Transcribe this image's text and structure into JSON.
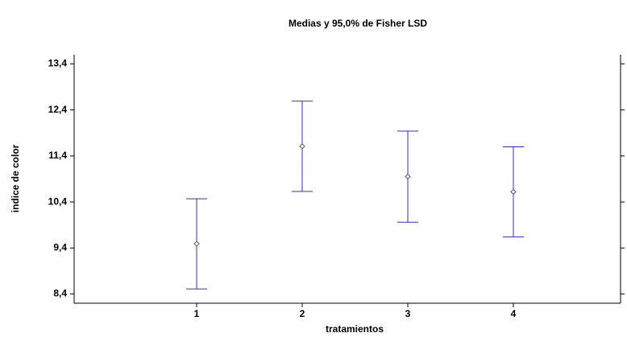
{
  "chart_data": {
    "type": "errorbar",
    "title": "Medias y 95,0% de Fisher LSD",
    "x_label": "tratamientos",
    "y_label": "indice de color",
    "categories": [
      "1",
      "2",
      "3",
      "4"
    ],
    "values": [
      9.49,
      11.61,
      10.95,
      10.62
    ],
    "errors": [
      0.98,
      0.98,
      0.99,
      0.98
    ],
    "color": "#3030d0",
    "ylim": [
      8.2,
      13.6
    ],
    "yticks": [
      {
        "value": 8.4,
        "label": "8,4"
      },
      {
        "value": 9.4,
        "label": "9,4"
      },
      {
        "value": 10.4,
        "label": "10,4"
      },
      {
        "value": 11.4,
        "label": "11,4"
      },
      {
        "value": 12.4,
        "label": "12,4"
      },
      {
        "value": 13.4,
        "label": "13,4"
      }
    ],
    "grid": false
  }
}
